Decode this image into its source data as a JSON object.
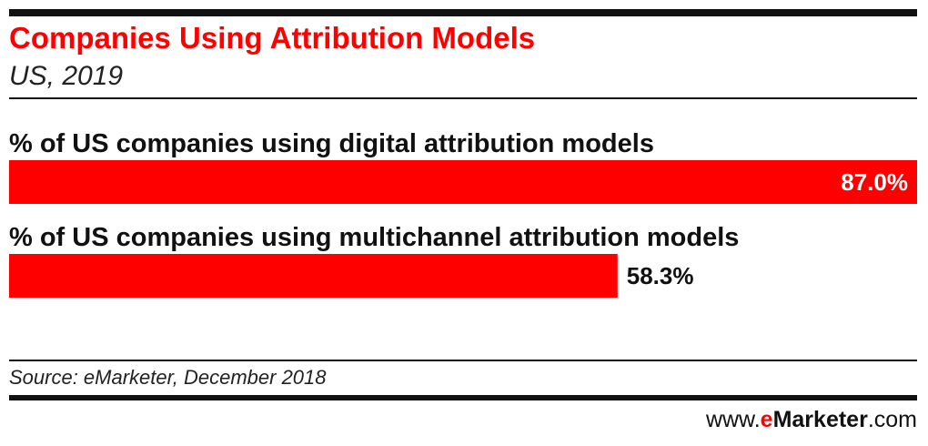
{
  "chart_data": {
    "type": "bar",
    "orientation": "horizontal",
    "title": "Companies Using Attribution Models",
    "subtitle": "US, 2019",
    "categories": [
      "% of US companies using digital attribution models",
      "% of US companies using multichannel attribution models"
    ],
    "values": [
      87.0,
      58.3
    ],
    "value_labels": [
      "87.0%",
      "58.3%"
    ],
    "xlim": [
      0,
      87.0
    ],
    "grid": false,
    "legend": "none",
    "bar_color": "#ff0000"
  },
  "source": "Source: eMarketer, December 2018",
  "footer": {
    "prefix": "www.",
    "brand_e": "e",
    "brand_rest": "Marketer",
    "suffix": ".com"
  },
  "colors": {
    "accent": "#ff0000",
    "text": "#111111"
  }
}
